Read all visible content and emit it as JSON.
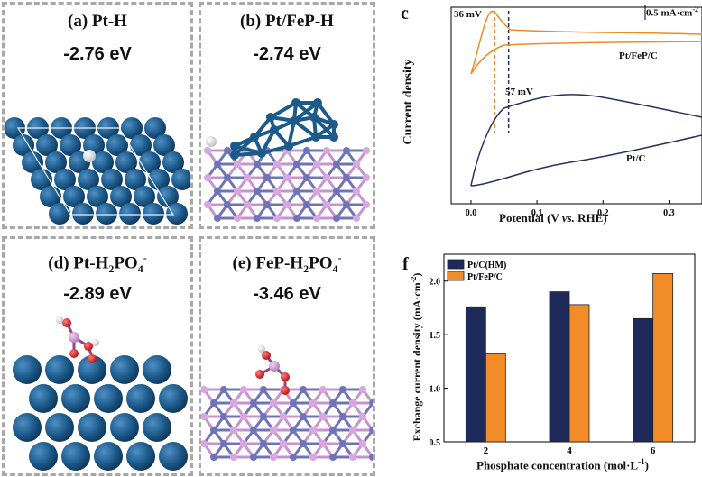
{
  "panels": {
    "a": {
      "title": "(a) Pt-H",
      "energy": "-2.76  eV"
    },
    "b": {
      "title": "(b) Pt/FeP-H",
      "energy": "-2.74 eV"
    },
    "d": {
      "title_pre": "(d) Pt-H",
      "title_sub": "2",
      "title_mid": "PO",
      "title_sub2": "4",
      "title_sup": "-",
      "energy": "-2.89  eV"
    },
    "e": {
      "title_pre": "(e) FeP-H",
      "title_sub": "2",
      "title_mid": "PO",
      "title_sub2": "4",
      "title_sup": "-",
      "energy": "-3.46 eV"
    }
  },
  "colors": {
    "pt": "#1c5a8a",
    "fep_pink": "#d9a6e0",
    "fep_purple": "#6f74b8",
    "oxygen": "#e0202a",
    "hydrogen": "#f2f2f2",
    "cv_orange": "#f08a24",
    "cv_navy": "#26325e",
    "bar_navy": "#1e2a5a",
    "bar_orange": "#f28c28"
  },
  "chart_c": {
    "letter": "c",
    "xlabel_pre": "Potential (V ",
    "xlabel_italic": "vs.",
    "xlabel_post": " RHE)",
    "ylabel": "Current density",
    "scale_label": "0.5 mA·cm",
    "scale_sup": "-2",
    "annotation_top": "36 mV",
    "annotation_bottom": "57 mV",
    "label_top_curve": "Pt/FeP/C",
    "label_bottom_curve": "Pt/C",
    "xticks": [
      "0.0",
      "0.1",
      "0.2",
      "0.3"
    ]
  },
  "chart_data": {
    "type": "bar",
    "title": "",
    "xlabel": "Phosphate concentration (mol·L-1)",
    "ylabel": "Exchange current density (mA·cm-2)",
    "categories": [
      "2",
      "4",
      "6"
    ],
    "series": [
      {
        "name": "Pt/C(HM)",
        "values": [
          1.76,
          1.9,
          1.65
        ]
      },
      {
        "name": "Pt/FeP/C",
        "values": [
          1.32,
          1.78,
          2.07
        ]
      }
    ],
    "ylim": [
      0.5,
      2.25
    ],
    "yticks": [
      "0.5",
      "1.0",
      "1.5",
      "2.0"
    ],
    "legend": "top-left",
    "grid": false,
    "letter": "f",
    "xlabel_pre": "Phosphate concentration (mol·L",
    "xlabel_sup": "-1",
    "xlabel_post": ")",
    "ylabel_pre": "Exchange current density (mA·cm",
    "ylabel_sup": "-2",
    "ylabel_post": ")"
  }
}
